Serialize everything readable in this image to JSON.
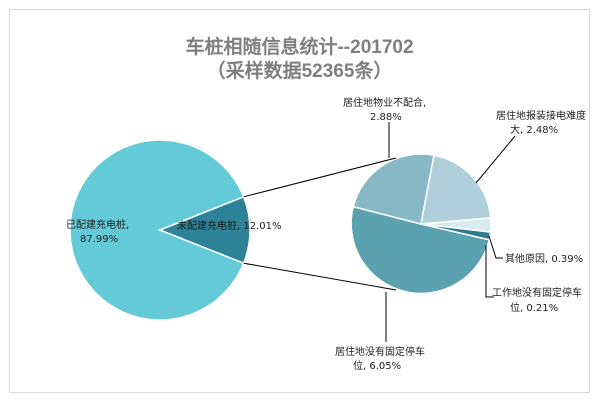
{
  "chart_data": {
    "type": "pie",
    "title": "车桩相随信息统计--201702",
    "subtitle": "（采样数据52365条）",
    "main_pie": {
      "slices": [
        {
          "label": "已配建充电桩",
          "value": 87.99,
          "value_text": "87.99%",
          "color": "#65CAD8"
        },
        {
          "label": "未配建充电桩",
          "value": 12.01,
          "value_text": "12.01%",
          "color": "#2E8297"
        }
      ]
    },
    "breakdown_pie": {
      "of": "未配建充电桩",
      "slices": [
        {
          "label": "居住地没有固定停车位",
          "value": 6.05,
          "value_text": "6.05%",
          "color": "#5BA2B1"
        },
        {
          "label": "居住地物业不配合",
          "value": 2.88,
          "value_text": "2.88%",
          "color": "#86B8C5"
        },
        {
          "label": "居住地报装接电难度大",
          "value": 2.48,
          "value_text": "2.48%",
          "color": "#AFD0DA"
        },
        {
          "label": "其他原因",
          "value": 0.39,
          "value_text": "0.39%",
          "color": "#D8EBF0"
        },
        {
          "label": "工作地没有固定停车位",
          "value": 0.21,
          "value_text": "0.21%",
          "color": "#2E7A8F"
        }
      ]
    }
  },
  "labels": {
    "main_a_line1": "已配建充电桩,",
    "main_a_line2": "87.99%",
    "main_b": "未配建充电桩, 12.01%",
    "s_property_line1": "居住地物业不配合,",
    "s_property_line2": "2.88%",
    "s_power_line1": "居住地报装接电难度",
    "s_power_line2": "大, 2.48%",
    "s_other": "其他原因, 0.39%",
    "s_work_line1": "工作地没有固定停车",
    "s_work_line2": "位, 0.21%",
    "s_home_line1": "居住地没有固定停车",
    "s_home_line2": "位, 6.05%"
  }
}
